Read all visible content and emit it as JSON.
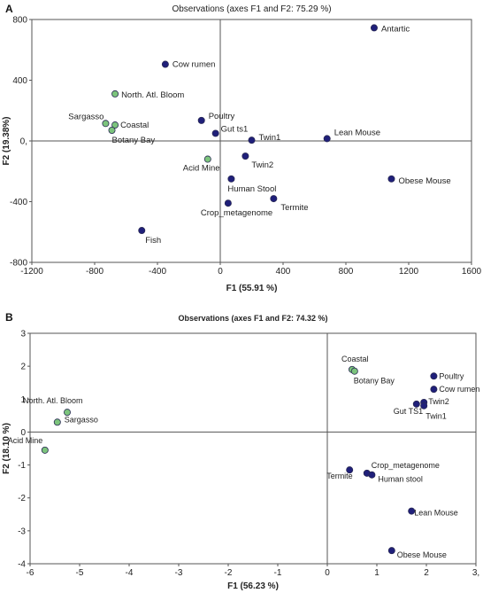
{
  "chart_data": [
    {
      "type": "scatter",
      "panel_label": "A",
      "title": "Observations (axes F1 and F2: 75.29 %)",
      "xlabel": "F1 (55.91 %)",
      "ylabel": "F2 (19.38%)",
      "xlim": [
        -1200,
        1600
      ],
      "ylim": [
        -800,
        800
      ],
      "x_ticks": [
        "-1200",
        "-800",
        "-400",
        "0",
        "400",
        "800",
        "1200",
        "1600"
      ],
      "y_ticks": [
        "800",
        "400",
        "0,",
        "-400",
        "-800"
      ],
      "colors": {
        "blue": "#1f1f7a",
        "green": "#7cc47c"
      },
      "points": [
        {
          "label": "Antartic",
          "x": 980,
          "y": 745,
          "color": "blue"
        },
        {
          "label": "Cow rumen",
          "x": -350,
          "y": 505,
          "color": "blue"
        },
        {
          "label": "North. Atl. Bloom",
          "x": -670,
          "y": 310,
          "color": "green"
        },
        {
          "label": "Sargasso",
          "x": -730,
          "y": 115,
          "color": "green"
        },
        {
          "label": "Coastal",
          "x": -670,
          "y": 105,
          "color": "green"
        },
        {
          "label": "Botany Bay",
          "x": -690,
          "y": 70,
          "color": "green"
        },
        {
          "label": "Poultry",
          "x": -120,
          "y": 135,
          "color": "blue"
        },
        {
          "label": "Gut ts1",
          "x": -30,
          "y": 50,
          "color": "blue"
        },
        {
          "label": "Twin1",
          "x": 200,
          "y": 5,
          "color": "blue"
        },
        {
          "label": "Lean Mouse",
          "x": 680,
          "y": 15,
          "color": "blue"
        },
        {
          "label": "Twin2",
          "x": 160,
          "y": -100,
          "color": "blue"
        },
        {
          "label": "Acid Mine",
          "x": -80,
          "y": -120,
          "color": "green"
        },
        {
          "label": "Human Stool",
          "x": 70,
          "y": -250,
          "color": "blue"
        },
        {
          "label": "Obese Mouse",
          "x": 1090,
          "y": -250,
          "color": "blue"
        },
        {
          "label": "Termite",
          "x": 340,
          "y": -380,
          "color": "blue"
        },
        {
          "label": "Crop_metagenome",
          "x": 50,
          "y": -410,
          "color": "blue"
        },
        {
          "label": "Fish",
          "x": -500,
          "y": -590,
          "color": "blue"
        }
      ]
    },
    {
      "type": "scatter",
      "panel_label": "B",
      "title": "Observations (axes F1 and F2: 74.32 %)",
      "xlabel": "F1 (56.23 %)",
      "ylabel": "F2 (18.10 %)",
      "xlim": [
        -6,
        3
      ],
      "ylim": [
        -4,
        3
      ],
      "x_ticks": [
        "-6",
        "-5",
        "-4",
        "-3",
        "-2",
        "-1",
        "0",
        "1",
        "2",
        "3,"
      ],
      "y_ticks": [
        "3",
        "2",
        "1",
        "0",
        "-1",
        "-2",
        "-3",
        "-4"
      ],
      "colors": {
        "blue": "#1f1f7a",
        "green": "#7cc47c"
      },
      "points": [
        {
          "label": "Coastal",
          "x": 0.5,
          "y": 1.9,
          "color": "green"
        },
        {
          "label": "Botany Bay",
          "x": 0.55,
          "y": 1.85,
          "color": "green"
        },
        {
          "label": "Poultry",
          "x": 2.15,
          "y": 1.7,
          "color": "blue"
        },
        {
          "label": "Cow rumen",
          "x": 2.15,
          "y": 1.3,
          "color": "blue"
        },
        {
          "label": "Twin2",
          "x": 1.95,
          "y": 0.9,
          "color": "blue"
        },
        {
          "label": "Gut TS1",
          "x": 1.8,
          "y": 0.85,
          "color": "blue"
        },
        {
          "label": "Twin1",
          "x": 1.95,
          "y": 0.8,
          "color": "blue"
        },
        {
          "label": "North. Atl. Bloom",
          "x": -5.25,
          "y": 0.6,
          "color": "green"
        },
        {
          "label": "Sargasso",
          "x": -5.45,
          "y": 0.3,
          "color": "green"
        },
        {
          "label": "Acid Mine",
          "x": -5.7,
          "y": -0.55,
          "color": "green"
        },
        {
          "label": "Termite",
          "x": 0.45,
          "y": -1.15,
          "color": "blue"
        },
        {
          "label": "Crop_metagenome",
          "x": 0.8,
          "y": -1.25,
          "color": "blue"
        },
        {
          "label": "Human stool",
          "x": 0.9,
          "y": -1.3,
          "color": "blue"
        },
        {
          "label": "Lean Mouse",
          "x": 1.7,
          "y": -2.4,
          "color": "blue"
        },
        {
          "label": "Obese Mouse",
          "x": 1.3,
          "y": -3.6,
          "color": "blue"
        }
      ]
    }
  ]
}
